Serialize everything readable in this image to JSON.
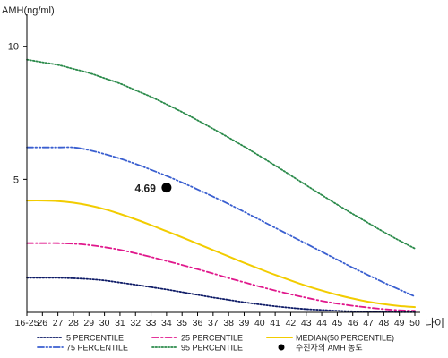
{
  "chart_data": {
    "type": "line",
    "ylabel": "AMH(ng/ml)",
    "xlabel": "나이",
    "ylim": [
      0,
      11
    ],
    "yticks": [
      5,
      10
    ],
    "categories": [
      "16-25",
      "26",
      "27",
      "28",
      "29",
      "30",
      "31",
      "32",
      "33",
      "34",
      "35",
      "36",
      "37",
      "38",
      "39",
      "40",
      "41",
      "42",
      "43",
      "44",
      "45",
      "46",
      "47",
      "48",
      "49",
      "50"
    ],
    "series": [
      {
        "name": "5 PERCENTILE",
        "color": "#0d1a66",
        "dash": "dotted",
        "values": [
          1.3,
          1.3,
          1.3,
          1.28,
          1.25,
          1.2,
          1.12,
          1.04,
          0.95,
          0.86,
          0.76,
          0.66,
          0.56,
          0.47,
          0.38,
          0.3,
          0.23,
          0.17,
          0.12,
          0.09,
          0.06,
          0.04,
          0.03,
          0.02,
          0.01,
          0.01
        ]
      },
      {
        "name": "25 PERCENTILE",
        "color": "#e0188c",
        "dash": "dashdot",
        "values": [
          2.6,
          2.6,
          2.6,
          2.58,
          2.53,
          2.45,
          2.35,
          2.22,
          2.08,
          1.93,
          1.78,
          1.62,
          1.46,
          1.29,
          1.13,
          0.97,
          0.82,
          0.68,
          0.55,
          0.43,
          0.33,
          0.25,
          0.18,
          0.12,
          0.08,
          0.06
        ]
      },
      {
        "name": "MEDIAN(50 PERCENTILE)",
        "color": "#f2cc00",
        "dash": "solid",
        "values": [
          4.2,
          4.2,
          4.18,
          4.12,
          4.02,
          3.88,
          3.7,
          3.5,
          3.28,
          3.05,
          2.82,
          2.58,
          2.34,
          2.1,
          1.86,
          1.63,
          1.41,
          1.2,
          1.0,
          0.82,
          0.66,
          0.52,
          0.4,
          0.31,
          0.24,
          0.2
        ]
      },
      {
        "name": "75 PERCENTILE",
        "color": "#3a5fd0",
        "dash": "dashdotdot",
        "values": [
          6.2,
          6.2,
          6.2,
          6.2,
          6.1,
          5.95,
          5.78,
          5.58,
          5.36,
          5.13,
          4.88,
          4.62,
          4.35,
          4.07,
          3.78,
          3.48,
          3.18,
          2.88,
          2.58,
          2.28,
          1.98,
          1.68,
          1.4,
          1.12,
          0.86,
          0.6
        ]
      },
      {
        "name": "95 PERCENTILE",
        "color": "#2a8a4a",
        "dash": "dotted",
        "values": [
          9.5,
          9.4,
          9.3,
          9.15,
          9.0,
          8.8,
          8.6,
          8.35,
          8.1,
          7.82,
          7.53,
          7.22,
          6.9,
          6.57,
          6.23,
          5.88,
          5.52,
          5.15,
          4.78,
          4.41,
          4.05,
          3.7,
          3.36,
          3.02,
          2.7,
          2.4
        ]
      }
    ],
    "marker": {
      "name": "수진자의 AMH 농도",
      "x": "34",
      "y": 4.69,
      "label": "4.69"
    },
    "legend_position": "bottom"
  }
}
